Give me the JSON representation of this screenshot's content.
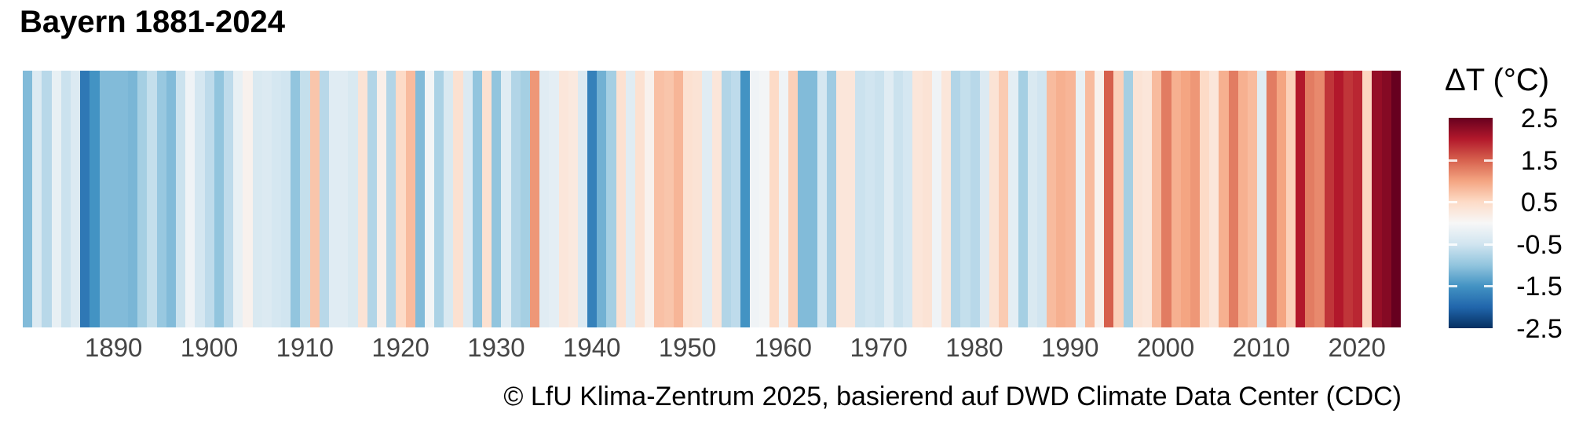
{
  "title": "Bayern 1881-2024",
  "caption": "© LfU Klima-Zentrum 2025, basierend auf DWD Climate Data Center (CDC)",
  "legend": {
    "title": "ΔT (°C)",
    "tick_labels": [
      "2.5",
      "1.5",
      "0.5",
      "-0.5",
      "-1.5",
      "-2.5"
    ],
    "min": -2.5,
    "max": 2.5,
    "position": "right"
  },
  "x_axis": {
    "tick_years": [
      1890,
      1900,
      1910,
      1920,
      1930,
      1940,
      1950,
      1960,
      1970,
      1980,
      1990,
      2000,
      2010,
      2020
    ]
  },
  "colors": {
    "background": "#ffffff",
    "axis_label": "#454545",
    "text": "#000000",
    "scale_stops": [
      "#053061",
      "#2166ac",
      "#4393c3",
      "#92c5de",
      "#d1e5f0",
      "#f7f7f7",
      "#fddbc7",
      "#f4a582",
      "#d6604d",
      "#b2182b",
      "#67001f"
    ]
  },
  "chart_data": {
    "type": "heatmap",
    "subtype": "warming-stripes",
    "title": "Bayern 1881-2024",
    "ylabel": "ΔT (°C)",
    "value_range": [
      -2.5,
      2.5
    ],
    "start_year": 1881,
    "end_year": 2024,
    "values": [
      -1.1,
      -0.35,
      -0.7,
      -0.2,
      -0.55,
      -0.35,
      -1.8,
      -1.5,
      -1.1,
      -1.1,
      -1.1,
      -1.15,
      -0.85,
      -0.6,
      -0.95,
      -1.1,
      -0.55,
      -0.1,
      -0.45,
      -0.65,
      -1.0,
      -0.65,
      -0.2,
      0.1,
      -0.4,
      -0.35,
      -0.45,
      -0.5,
      -1.0,
      -0.6,
      0.7,
      -0.7,
      -0.3,
      -0.3,
      -0.4,
      0.35,
      -0.75,
      0.15,
      -0.75,
      0.5,
      0.8,
      -1.1,
      -0.05,
      -0.8,
      -0.4,
      0.4,
      -0.35,
      -1.0,
      0.4,
      -1.0,
      -0.3,
      -0.75,
      -0.85,
      1.1,
      -0.3,
      -0.25,
      0.3,
      0.25,
      -0.35,
      -1.7,
      -1.2,
      -0.85,
      0.4,
      -0.3,
      0.4,
      0.1,
      0.75,
      0.7,
      0.85,
      0.4,
      0.35,
      -0.3,
      0.3,
      -0.75,
      -0.65,
      -1.5,
      -0.1,
      -0.05,
      0.5,
      -0.1,
      0.6,
      -1.1,
      -1.1,
      -0.45,
      -0.9,
      0.3,
      0.3,
      -0.55,
      -0.5,
      -0.55,
      -0.3,
      -0.55,
      -0.45,
      0.3,
      0.35,
      -0.1,
      0.3,
      -0.75,
      -0.6,
      -0.7,
      -0.35,
      0.35,
      0.65,
      -0.25,
      -0.85,
      -0.4,
      -0.5,
      0.8,
      0.9,
      0.85,
      -0.2,
      0.8,
      0.1,
      1.5,
      0.6,
      -0.85,
      0.35,
      0.3,
      0.8,
      1.3,
      0.9,
      1.0,
      1.1,
      0.5,
      0.3,
      0.9,
      1.3,
      0.9,
      0.8,
      -0.3,
      1.3,
      1.0,
      0.6,
      2.0,
      1.3,
      1.2,
      1.8,
      2.0,
      1.8,
      1.9,
      0.55,
      2.2,
      2.3,
      2.5
    ]
  }
}
